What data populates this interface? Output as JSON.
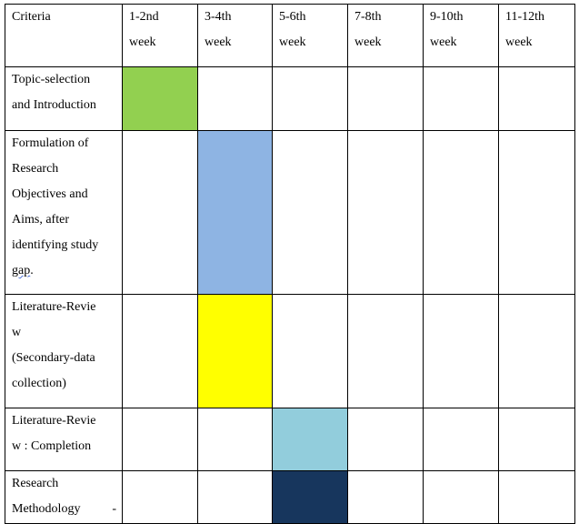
{
  "header": {
    "criteria_label": "Criteria",
    "weeks": [
      {
        "range": "1-2nd",
        "unit": "week"
      },
      {
        "range": "3-4th",
        "unit": "week"
      },
      {
        "range": "5-6th",
        "unit": "week"
      },
      {
        "range": "7-8th",
        "unit": "week"
      },
      {
        "range": "9-10th",
        "unit": "week"
      },
      {
        "range": "11-12th",
        "unit": "week"
      }
    ]
  },
  "rows": [
    {
      "lines": [
        "Topic-selection",
        "and Introduction"
      ],
      "active_week_index": 0,
      "color": "#92d050"
    },
    {
      "lines": [
        "Formulation of",
        "Research",
        "Objectives and",
        "Aims, after",
        "identifying study"
      ],
      "last_word": "gap",
      "last_word_suffix": ".",
      "active_week_index": 1,
      "color": "#8eb4e3"
    },
    {
      "lines": [
        "Literature-Revie",
        "w",
        "(Secondary-data",
        "collection)"
      ],
      "active_week_index": 1,
      "color": "#ffff00"
    },
    {
      "lines": [
        "Literature-Revie",
        "w : Completion"
      ],
      "active_week_index": 2,
      "color": "#92cddc"
    },
    {
      "lines": [
        "Research",
        "Methodology -"
      ],
      "active_week_index": 2,
      "color": "#17365d"
    }
  ]
}
